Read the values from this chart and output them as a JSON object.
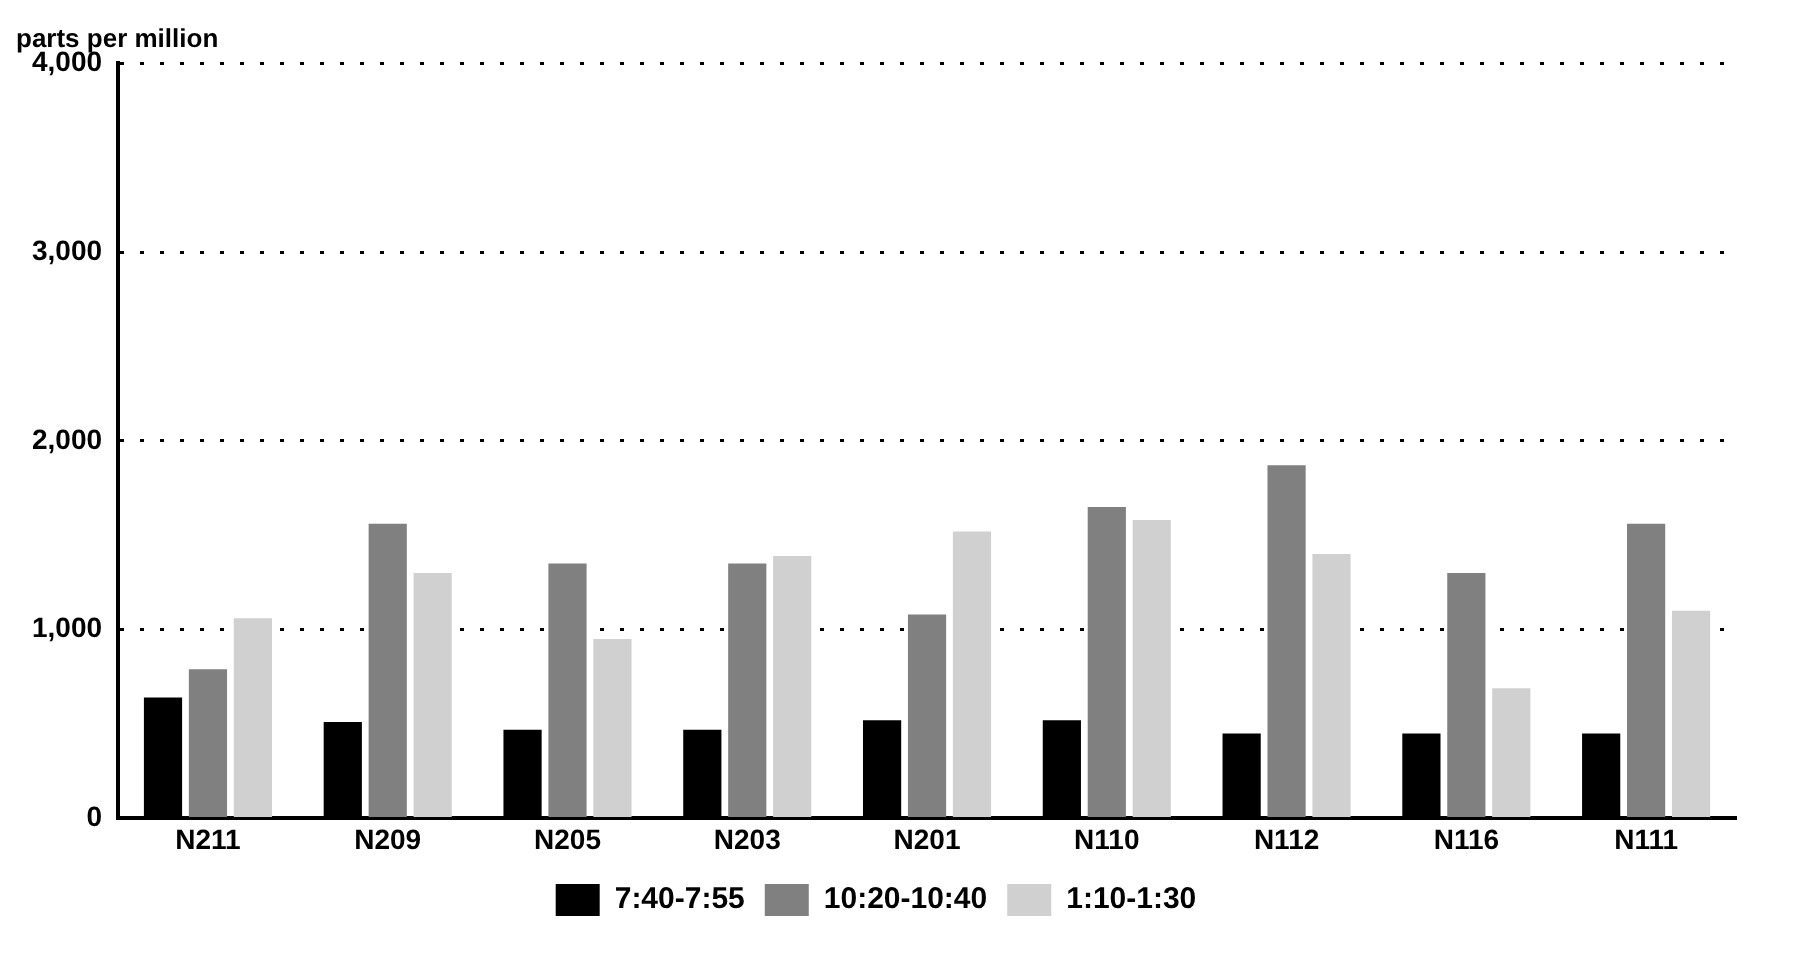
{
  "chart_data": {
    "type": "bar",
    "ylabel": "parts per million",
    "categories": [
      "N211",
      "N209",
      "N205",
      "N203",
      "N201",
      "N110",
      "N112",
      "N116",
      "N111"
    ],
    "series": [
      {
        "name": "7:40-7:55",
        "color": "#000000",
        "values": [
          640,
          510,
          470,
          470,
          520,
          520,
          450,
          450,
          450
        ]
      },
      {
        "name": "10:20-10:40",
        "color": "#808080",
        "values": [
          790,
          1560,
          1350,
          1350,
          1080,
          1650,
          1870,
          1300,
          1560
        ]
      },
      {
        "name": "1:10-1:30",
        "color": "#d0d0d0",
        "values": [
          1060,
          1300,
          950,
          1390,
          1520,
          1580,
          1400,
          690,
          1100
        ]
      }
    ],
    "ylim": [
      0,
      4000
    ],
    "yticks": [
      {
        "value": 0,
        "label": "0"
      },
      {
        "value": 1000,
        "label": "1,000"
      },
      {
        "value": 2000,
        "label": "2,000"
      },
      {
        "value": 3000,
        "label": "3,000"
      },
      {
        "value": 4000,
        "label": "4,000"
      }
    ],
    "grid": "y",
    "legend": "bottom"
  }
}
